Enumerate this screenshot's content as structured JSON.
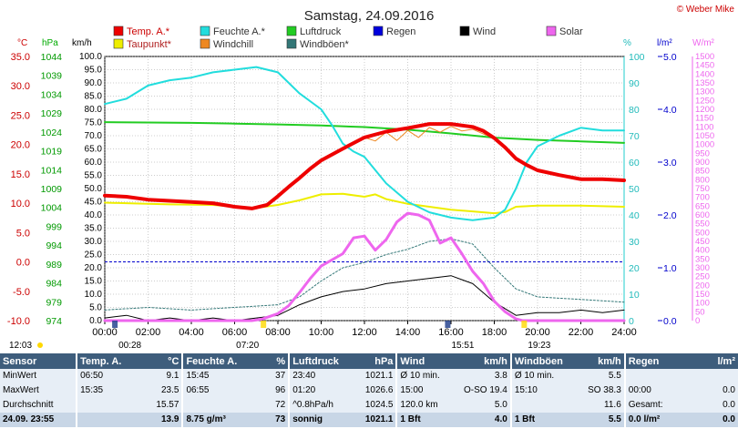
{
  "title": "Samstag, 24.09.2016",
  "credit": "© Weber Mike",
  "legend": [
    {
      "label": "Temp. A.*",
      "color": "#ee0000"
    },
    {
      "label": "Feuchte A.*",
      "color": "#22dddd"
    },
    {
      "label": "Luftdruck",
      "color": "#22cc22"
    },
    {
      "label": "Regen",
      "color": "#0000dd"
    },
    {
      "label": "Wind",
      "color": "#000000"
    },
    {
      "label": "Solar",
      "color": "#ee66ee"
    },
    {
      "label": "Taupunkt*",
      "color": "#eeee00"
    },
    {
      "label": "Windchill",
      "color": "#ee8822"
    },
    {
      "label": "Windböen*",
      "color": "#337777"
    }
  ],
  "axis_units": {
    "temp": "°C",
    "pressure": "hPa",
    "wind": "km/h",
    "humidity": "%",
    "rain": "l/m²",
    "solar": "W/m²"
  },
  "axes": {
    "temp_ticks": [
      "35.0",
      "30.0",
      "25.0",
      "20.0",
      "15.0",
      "10.0",
      "5.0",
      "0.0",
      "-5.0",
      "-10.0"
    ],
    "pressure_ticks": [
      "1044",
      "1039",
      "1034",
      "1029",
      "1024",
      "1019",
      "1014",
      "1009",
      "1004",
      "999",
      "994",
      "989",
      "984",
      "979",
      "974"
    ],
    "wind_ticks": [
      "100.0",
      "95.0",
      "90.0",
      "85.0",
      "80.0",
      "75.0",
      "70.0",
      "65.0",
      "60.0",
      "55.0",
      "50.0",
      "45.0",
      "40.0",
      "35.0",
      "30.0",
      "25.0",
      "20.0",
      "15.0",
      "10.0",
      "5.0",
      "0.0"
    ],
    "humidity_ticks": [
      "100",
      "90",
      "80",
      "70",
      "60",
      "50",
      "40",
      "30",
      "20",
      "10",
      "0"
    ],
    "rain_ticks": [
      "5.0",
      "4.0",
      "3.0",
      "2.0",
      "1.0",
      "0.0"
    ],
    "solar_ticks": [
      "1500",
      "1450",
      "1400",
      "1350",
      "1300",
      "1250",
      "1200",
      "1150",
      "1100",
      "1050",
      "1000",
      "950",
      "900",
      "850",
      "800",
      "750",
      "700",
      "650",
      "600",
      "550",
      "500",
      "450",
      "400",
      "350",
      "300",
      "250",
      "200",
      "150",
      "100",
      "50",
      "0"
    ],
    "time_ticks": [
      "00:00",
      "02:00",
      "04:00",
      "06:00",
      "08:00",
      "10:00",
      "12:00",
      "14:00",
      "16:00",
      "18:00",
      "20:00",
      "22:00",
      "24:00"
    ]
  },
  "time_markers": {
    "left": "12:03",
    "moonrise": "00:28",
    "sunrise": "07:20",
    "moonset": "15:51",
    "sunset": "19:23"
  },
  "chart_data": {
    "type": "line",
    "title": "Samstag, 24.09.2016",
    "x_unit": "hour",
    "xlim": [
      0,
      24
    ],
    "series": [
      {
        "name": "Temp. A.*",
        "unit": "°C",
        "axis": "temp",
        "points": [
          [
            0,
            11.3
          ],
          [
            1,
            11.1
          ],
          [
            2,
            10.6
          ],
          [
            3,
            10.4
          ],
          [
            4,
            10.2
          ],
          [
            5,
            10.0
          ],
          [
            6,
            9.4
          ],
          [
            6.8,
            9.1
          ],
          [
            7.5,
            9.7
          ],
          [
            8,
            11.2
          ],
          [
            8.5,
            12.8
          ],
          [
            9,
            14.3
          ],
          [
            9.5,
            15.9
          ],
          [
            10,
            17.3
          ],
          [
            11,
            19.3
          ],
          [
            12,
            21.2
          ],
          [
            13,
            22.2
          ],
          [
            14,
            22.8
          ],
          [
            15,
            23.5
          ],
          [
            16,
            23.5
          ],
          [
            17,
            23.0
          ],
          [
            17.5,
            22.3
          ],
          [
            18,
            21.1
          ],
          [
            18.5,
            19.5
          ],
          [
            19,
            17.6
          ],
          [
            19.5,
            16.5
          ],
          [
            20,
            15.6
          ],
          [
            21,
            14.8
          ],
          [
            22,
            14.1
          ],
          [
            23,
            14.1
          ],
          [
            24,
            13.9
          ]
        ]
      },
      {
        "name": "Taupunkt*",
        "unit": "°C",
        "axis": "temp",
        "points": [
          [
            0,
            10.1
          ],
          [
            1,
            10.0
          ],
          [
            3,
            9.8
          ],
          [
            5,
            9.7
          ],
          [
            6,
            9.4
          ],
          [
            7,
            9.2
          ],
          [
            8,
            9.7
          ],
          [
            9,
            10.5
          ],
          [
            10,
            11.5
          ],
          [
            11,
            11.6
          ],
          [
            12,
            11.1
          ],
          [
            12.5,
            11.5
          ],
          [
            13,
            10.7
          ],
          [
            14,
            9.9
          ],
          [
            15,
            9.4
          ],
          [
            16,
            8.9
          ],
          [
            17,
            8.6
          ],
          [
            18,
            8.3
          ],
          [
            18.5,
            8.5
          ],
          [
            19,
            9.4
          ],
          [
            20,
            9.6
          ],
          [
            22,
            9.6
          ],
          [
            24,
            9.4
          ]
        ]
      },
      {
        "name": "Windchill",
        "unit": "°C",
        "axis": "temp",
        "points": [
          [
            12,
            21.2
          ],
          [
            12.5,
            20.6
          ],
          [
            13,
            22.1
          ],
          [
            13.5,
            20.7
          ],
          [
            14,
            22.4
          ],
          [
            14.5,
            21.2
          ],
          [
            15,
            22.9
          ],
          [
            15.5,
            22.1
          ],
          [
            16,
            23.1
          ],
          [
            16.5,
            22.3
          ],
          [
            17,
            22.6
          ],
          [
            17.5,
            21.8
          ],
          [
            18,
            21.1
          ]
        ]
      },
      {
        "name": "Feuchte A.*",
        "unit": "%",
        "axis": "humidity",
        "points": [
          [
            0,
            82
          ],
          [
            1,
            84
          ],
          [
            2,
            89
          ],
          [
            3,
            91
          ],
          [
            4,
            92
          ],
          [
            5,
            94
          ],
          [
            6,
            95
          ],
          [
            7,
            96
          ],
          [
            8,
            94
          ],
          [
            9,
            86
          ],
          [
            10,
            80
          ],
          [
            10.5,
            74
          ],
          [
            11,
            67
          ],
          [
            11.5,
            64
          ],
          [
            12,
            62
          ],
          [
            13,
            52
          ],
          [
            14,
            45
          ],
          [
            15,
            41
          ],
          [
            16,
            39
          ],
          [
            17,
            38
          ],
          [
            18,
            39
          ],
          [
            18.5,
            42
          ],
          [
            19,
            50
          ],
          [
            19.5,
            60
          ],
          [
            20,
            66
          ],
          [
            21,
            70
          ],
          [
            22,
            73
          ],
          [
            23,
            72
          ],
          [
            24,
            72
          ]
        ]
      },
      {
        "name": "Luftdruck",
        "unit": "hPa",
        "axis": "pressure",
        "points": [
          [
            0,
            1026.6
          ],
          [
            2,
            1026.5
          ],
          [
            4,
            1026.4
          ],
          [
            6,
            1026.2
          ],
          [
            8,
            1026.0
          ],
          [
            10,
            1025.7
          ],
          [
            12,
            1025.3
          ],
          [
            14,
            1024.6
          ],
          [
            16,
            1023.6
          ],
          [
            18,
            1022.5
          ],
          [
            20,
            1021.9
          ],
          [
            22,
            1021.5
          ],
          [
            24,
            1021.1
          ]
        ]
      },
      {
        "name": "Solar",
        "unit": "W/m²",
        "axis": "solar",
        "points": [
          [
            0,
            0
          ],
          [
            6.8,
            0
          ],
          [
            7.3,
            10
          ],
          [
            8,
            40
          ],
          [
            8.5,
            85
          ],
          [
            9,
            160
          ],
          [
            9.5,
            240
          ],
          [
            10,
            310
          ],
          [
            11,
            380
          ],
          [
            11.5,
            470
          ],
          [
            12,
            480
          ],
          [
            12.5,
            400
          ],
          [
            13,
            460
          ],
          [
            13.5,
            560
          ],
          [
            14,
            610
          ],
          [
            14.5,
            600
          ],
          [
            15,
            570
          ],
          [
            15.5,
            440
          ],
          [
            16,
            470
          ],
          [
            16.5,
            380
          ],
          [
            17,
            280
          ],
          [
            17.5,
            210
          ],
          [
            18,
            110
          ],
          [
            18.5,
            50
          ],
          [
            19,
            10
          ],
          [
            19.3,
            0
          ],
          [
            24,
            0
          ]
        ]
      },
      {
        "name": "Windböen*",
        "unit": "km/h",
        "axis": "wind",
        "points": [
          [
            0,
            4
          ],
          [
            2,
            5
          ],
          [
            4,
            4
          ],
          [
            6,
            5
          ],
          [
            8,
            6
          ],
          [
            9,
            9
          ],
          [
            10,
            15
          ],
          [
            11,
            20
          ],
          [
            12,
            22
          ],
          [
            13,
            25
          ],
          [
            14,
            27
          ],
          [
            15,
            30
          ],
          [
            16,
            31
          ],
          [
            17,
            29
          ],
          [
            18,
            20
          ],
          [
            19,
            12
          ],
          [
            20,
            9
          ],
          [
            22,
            8
          ],
          [
            24,
            7
          ]
        ]
      },
      {
        "name": "Wind",
        "unit": "km/h",
        "axis": "wind",
        "points": [
          [
            0,
            1
          ],
          [
            1,
            2
          ],
          [
            2,
            0
          ],
          [
            3,
            1
          ],
          [
            4,
            0
          ],
          [
            5,
            1
          ],
          [
            6,
            0
          ],
          [
            7,
            1
          ],
          [
            8,
            2
          ],
          [
            9,
            6
          ],
          [
            10,
            9
          ],
          [
            11,
            11
          ],
          [
            12,
            12
          ],
          [
            13,
            14
          ],
          [
            14,
            15
          ],
          [
            15,
            16
          ],
          [
            16,
            17
          ],
          [
            17,
            14
          ],
          [
            18,
            7
          ],
          [
            19,
            2
          ],
          [
            20,
            3
          ],
          [
            21,
            3
          ],
          [
            22,
            4
          ],
          [
            23,
            3
          ],
          [
            24,
            4
          ]
        ]
      }
    ]
  },
  "table": {
    "header": [
      "Sensor",
      "Temp. A.",
      "°C",
      "Feuchte A.",
      "%",
      "Luftdruck",
      "hPa",
      "Wind",
      "km/h",
      "Windböen",
      "km/h",
      "Regen",
      "l/m²"
    ],
    "rows": [
      [
        "MinWert",
        "06:50",
        "9.1",
        "15:45",
        "37",
        "23:40",
        "1021.1",
        "Ø 10 min.",
        "3.8",
        "Ø 10 min.",
        "5.5",
        "",
        ""
      ],
      [
        "MaxWert",
        "15:35",
        "23.5",
        "06:55",
        "96",
        "01:20",
        "1026.6",
        "15:00",
        "O-SO 19.4",
        "15:10",
        "SO 38.3",
        "00:00",
        "0.0"
      ],
      [
        "Durchschnitt",
        "",
        "15.57",
        "",
        "72",
        "^0.8hPa/h",
        "1024.5",
        "120.0 km",
        "5.0",
        "",
        "11.6",
        "Gesamt:",
        "0.0"
      ],
      [
        "24.09. 23:55",
        "",
        "13.9",
        "8.75 g/m³",
        "73",
        "sonnig",
        "1021.1",
        "1 Bft",
        "4.0",
        "1 Bft",
        "5.5",
        "0.0 l/m²",
        "0.0"
      ]
    ]
  }
}
